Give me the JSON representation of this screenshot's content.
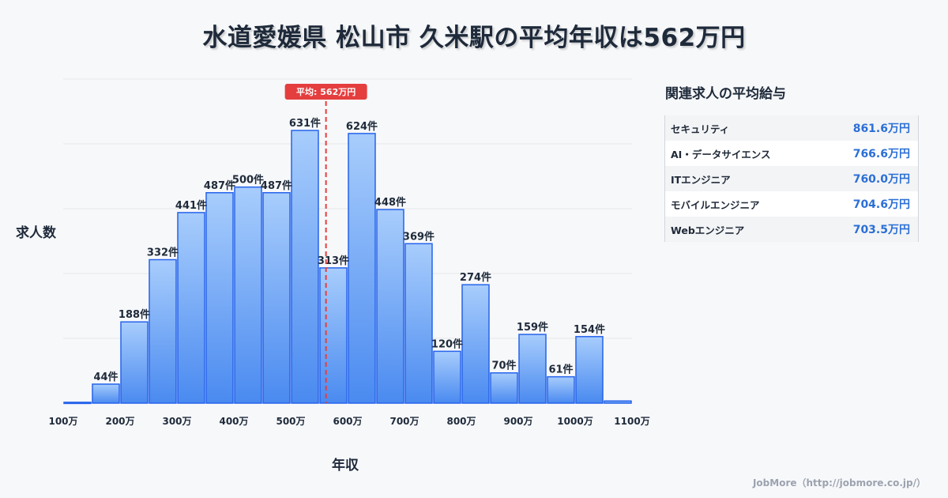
{
  "title": "水道愛媛県 松山市 久米駅の平均年収は562万円",
  "chart_data": {
    "type": "bar",
    "xlabel": "年収",
    "ylabel": "求人数",
    "x_tick_labels": [
      "100万",
      "200万",
      "300万",
      "400万",
      "500万",
      "600万",
      "700万",
      "800万",
      "900万",
      "1000万",
      "1100万"
    ],
    "bin_start": 100,
    "bin_width": 50,
    "values": [
      2,
      44,
      188,
      332,
      441,
      487,
      500,
      487,
      631,
      313,
      624,
      448,
      369,
      120,
      274,
      70,
      159,
      61,
      154,
      5
    ],
    "value_labels": [
      "",
      "44件",
      "188件",
      "332件",
      "441件",
      "487件",
      "500件",
      "487件",
      "631件",
      "313件",
      "624件",
      "448件",
      "369件",
      "120件",
      "274件",
      "70件",
      "159件",
      "61件",
      "154件",
      ""
    ],
    "ylim": [
      0,
      750
    ],
    "grid": true,
    "average": {
      "value": 562,
      "label": "平均: 562万円",
      "color": "#e53e3e"
    },
    "bar_color_top": "#a8cdfc",
    "bar_color_bottom": "#4a8af0",
    "bar_stroke": "#2563eb"
  },
  "sidebar": {
    "title": "関連求人の平均給与",
    "items": [
      {
        "name": "セキュリティ",
        "value": "861.6万円"
      },
      {
        "name": "AI・データサイエンス",
        "value": "766.6万円"
      },
      {
        "name": "ITエンジニア",
        "value": "760.0万円"
      },
      {
        "name": "モバイルエンジニア",
        "value": "704.6万円"
      },
      {
        "name": "Webエンジニア",
        "value": "703.5万円"
      }
    ]
  },
  "footer": "JobMore（http://jobmore.co.jp/）"
}
